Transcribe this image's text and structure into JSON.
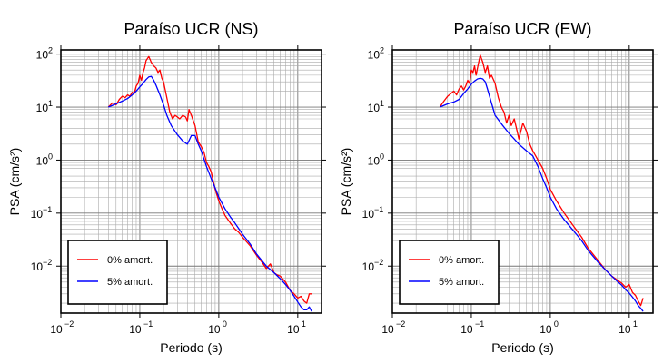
{
  "chart_data": [
    {
      "type": "line",
      "title": "Paraíso UCR (NS)",
      "xlabel": "Periodo (s)",
      "ylabel": "PSA (cm/s²)",
      "xscale": "log",
      "yscale": "log",
      "xlim": [
        0.01,
        20
      ],
      "ylim": [
        0.0013,
        120
      ],
      "grid": true,
      "legend_position": "bottom-left",
      "x_tick_labels": [
        "10",
        "10",
        "10",
        "10"
      ],
      "x_tick_exponents": [
        "−2",
        "−1",
        "0",
        "1"
      ],
      "y_tick_labels": [
        "10",
        "10",
        "10",
        "10",
        "10"
      ],
      "y_tick_exponents": [
        "2",
        "1",
        "0",
        "−1",
        "−2"
      ],
      "series": [
        {
          "name": "0% amort.",
          "color": "#ff0000",
          "x": [
            0.04,
            0.045,
            0.05,
            0.055,
            0.06,
            0.065,
            0.07,
            0.075,
            0.08,
            0.085,
            0.09,
            0.095,
            0.1,
            0.105,
            0.11,
            0.115,
            0.12,
            0.13,
            0.14,
            0.15,
            0.16,
            0.17,
            0.18,
            0.19,
            0.2,
            0.22,
            0.24,
            0.26,
            0.28,
            0.3,
            0.32,
            0.35,
            0.38,
            0.4,
            0.42,
            0.45,
            0.5,
            0.55,
            0.6,
            0.65,
            0.7,
            0.75,
            0.8,
            0.9,
            1.0,
            1.1,
            1.2,
            1.4,
            1.6,
            1.8,
            2.0,
            2.5,
            3.0,
            3.5,
            4.0,
            4.5,
            5.0,
            5.5,
            6.0,
            7.0,
            8.0,
            9.0,
            10.0,
            11.0,
            12.0,
            13.0,
            14.0,
            15.0
          ],
          "values": [
            10,
            12,
            11,
            14,
            16,
            15,
            17,
            16,
            19,
            18,
            25,
            28,
            40,
            32,
            45,
            55,
            75,
            90,
            70,
            60,
            55,
            45,
            50,
            35,
            30,
            15,
            8,
            6,
            7,
            6.5,
            6,
            7,
            6.5,
            5.5,
            9,
            7,
            4.5,
            2.2,
            1.8,
            1.4,
            0.9,
            0.75,
            0.6,
            0.28,
            0.17,
            0.12,
            0.09,
            0.065,
            0.05,
            0.043,
            0.035,
            0.024,
            0.016,
            0.012,
            0.009,
            0.011,
            0.0075,
            0.0068,
            0.0065,
            0.005,
            0.0035,
            0.003,
            0.0025,
            0.0027,
            0.0022,
            0.002,
            0.003,
            0.003
          ]
        },
        {
          "name": "5% amort.",
          "color": "#0000ff",
          "x": [
            0.04,
            0.05,
            0.06,
            0.07,
            0.08,
            0.09,
            0.1,
            0.11,
            0.12,
            0.13,
            0.14,
            0.15,
            0.16,
            0.18,
            0.2,
            0.22,
            0.25,
            0.28,
            0.3,
            0.35,
            0.4,
            0.45,
            0.5,
            0.55,
            0.6,
            0.7,
            0.8,
            0.9,
            1.0,
            1.2,
            1.4,
            1.6,
            2.0,
            2.5,
            3.0,
            4.0,
            5.0,
            6.0,
            7.0,
            8.0,
            9.0,
            10.0,
            11.0,
            12.0,
            13.0,
            14.0,
            15.0
          ],
          "values": [
            10,
            11.5,
            13,
            14.5,
            17,
            20,
            24,
            28,
            33,
            37,
            38,
            32,
            26,
            17,
            11,
            7,
            4.5,
            3.5,
            3,
            2.3,
            2.0,
            2.9,
            2.9,
            2.0,
            1.5,
            0.75,
            0.45,
            0.3,
            0.2,
            0.12,
            0.085,
            0.065,
            0.04,
            0.026,
            0.017,
            0.01,
            0.0075,
            0.0058,
            0.0045,
            0.0035,
            0.0027,
            0.0021,
            0.0017,
            0.0015,
            0.0015,
            0.0017,
            0.0014
          ]
        }
      ]
    },
    {
      "type": "line",
      "title": "Paraíso UCR (EW)",
      "xlabel": "Periodo (s)",
      "ylabel": "PSA (cm/s²)",
      "xscale": "log",
      "yscale": "log",
      "xlim": [
        0.01,
        20
      ],
      "ylim": [
        0.0013,
        120
      ],
      "grid": true,
      "legend_position": "bottom-left",
      "x_tick_labels": [
        "10",
        "10",
        "10",
        "10"
      ],
      "x_tick_exponents": [
        "−2",
        "−1",
        "0",
        "1"
      ],
      "y_tick_labels": [
        "10",
        "10",
        "10",
        "10",
        "10"
      ],
      "y_tick_exponents": [
        "2",
        "1",
        "0",
        "−1",
        "−2"
      ],
      "series": [
        {
          "name": "0% amort.",
          "color": "#ff0000",
          "x": [
            0.04,
            0.045,
            0.05,
            0.055,
            0.06,
            0.065,
            0.07,
            0.075,
            0.08,
            0.085,
            0.09,
            0.095,
            0.1,
            0.105,
            0.11,
            0.115,
            0.12,
            0.125,
            0.13,
            0.14,
            0.15,
            0.16,
            0.17,
            0.18,
            0.2,
            0.22,
            0.24,
            0.26,
            0.28,
            0.3,
            0.32,
            0.35,
            0.38,
            0.4,
            0.45,
            0.5,
            0.55,
            0.6,
            0.7,
            0.8,
            0.9,
            1.0,
            1.2,
            1.5,
            2.0,
            2.5,
            3.0,
            4.0,
            5.0,
            6.0,
            7.0,
            8.0,
            9.0,
            10.0,
            11.0,
            12.0,
            13.0,
            14.0,
            15.0
          ],
          "values": [
            10,
            13,
            16,
            18,
            20,
            17,
            22,
            25,
            21,
            25,
            32,
            28,
            50,
            45,
            60,
            40,
            55,
            75,
            95,
            70,
            45,
            60,
            35,
            40,
            28,
            15,
            10,
            8,
            5,
            7,
            4.5,
            6,
            3.5,
            2.5,
            5,
            3.5,
            2.0,
            1.5,
            1.0,
            0.7,
            0.45,
            0.28,
            0.17,
            0.1,
            0.055,
            0.035,
            0.022,
            0.013,
            0.0085,
            0.0065,
            0.0055,
            0.0048,
            0.004,
            0.0045,
            0.0032,
            0.0028,
            0.0022,
            0.0018,
            0.0025
          ]
        },
        {
          "name": "5% amort.",
          "color": "#0000ff",
          "x": [
            0.04,
            0.05,
            0.06,
            0.07,
            0.08,
            0.09,
            0.1,
            0.11,
            0.12,
            0.13,
            0.14,
            0.15,
            0.16,
            0.18,
            0.2,
            0.25,
            0.3,
            0.35,
            0.4,
            0.5,
            0.6,
            0.7,
            0.8,
            0.9,
            1.0,
            1.2,
            1.5,
            2.0,
            2.5,
            3.0,
            4.0,
            5.0,
            6.0,
            7.0,
            8.0,
            9.0,
            10.0,
            11.0,
            12.0,
            13.0,
            14.0,
            15.0
          ],
          "values": [
            10,
            11.5,
            12.5,
            14,
            18,
            22,
            27,
            31,
            34,
            35,
            34,
            30,
            22,
            12,
            7,
            4.5,
            3.2,
            2.5,
            2.0,
            1.5,
            1.2,
            0.75,
            0.45,
            0.3,
            0.2,
            0.12,
            0.075,
            0.045,
            0.03,
            0.02,
            0.012,
            0.0085,
            0.0065,
            0.0052,
            0.0044,
            0.0036,
            0.0031,
            0.0026,
            0.0022,
            0.0018,
            0.0016,
            0.0014
          ]
        }
      ]
    }
  ]
}
